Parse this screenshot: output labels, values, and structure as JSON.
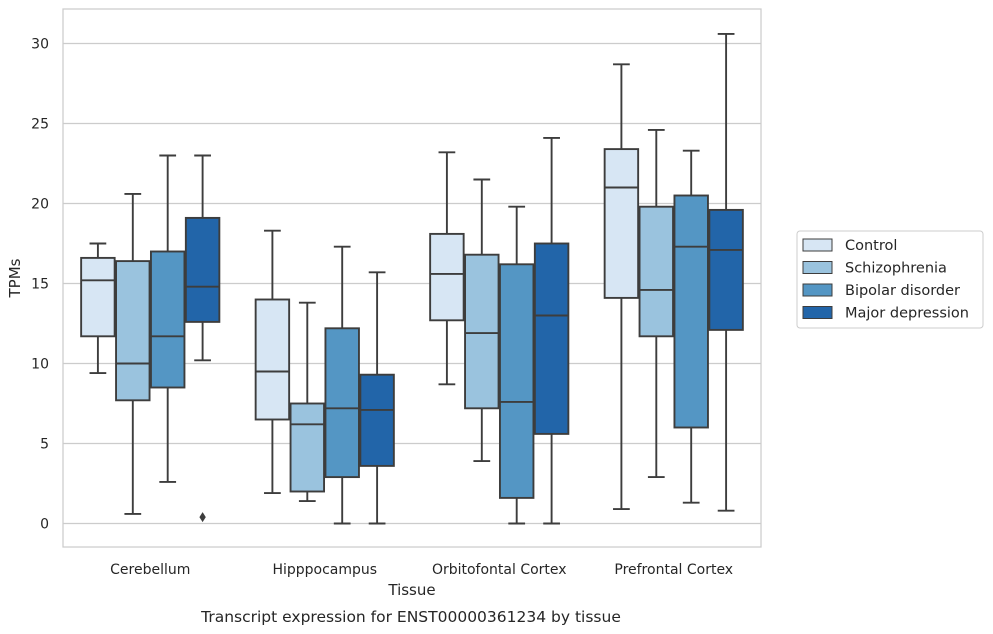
{
  "chart_data": {
    "type": "box",
    "caption": "Transcript expression for ENST00000361234 by tissue",
    "xlabel": "Tissue",
    "ylabel": "TPMs",
    "ylim": [
      -1.5,
      32.2
    ],
    "yticks": [
      0,
      5,
      10,
      15,
      20,
      25,
      30
    ],
    "grid": "horizontal",
    "legend_position": "right",
    "categories": [
      "Cerebellum",
      "Hipppocampus",
      "Orbitofontal Cortex",
      "Prefrontal Cortex"
    ],
    "series": [
      {
        "name": "Control",
        "color": "#d7e6f4",
        "boxes": [
          {
            "whislo": 9.4,
            "q1": 11.7,
            "med": 15.2,
            "q3": 16.6,
            "whishi": 17.5,
            "fliers": []
          },
          {
            "whislo": 1.9,
            "q1": 6.5,
            "med": 9.5,
            "q3": 14.0,
            "whishi": 18.3,
            "fliers": []
          },
          {
            "whislo": 8.7,
            "q1": 12.7,
            "med": 15.6,
            "q3": 18.1,
            "whishi": 23.2,
            "fliers": []
          },
          {
            "whislo": 0.9,
            "q1": 14.1,
            "med": 21.0,
            "q3": 23.4,
            "whishi": 28.7,
            "fliers": []
          }
        ]
      },
      {
        "name": "Schizophrenia",
        "color": "#9ac3de",
        "boxes": [
          {
            "whislo": 0.6,
            "q1": 7.7,
            "med": 10.0,
            "q3": 16.4,
            "whishi": 20.6,
            "fliers": []
          },
          {
            "whislo": 1.4,
            "q1": 2.0,
            "med": 6.2,
            "q3": 7.5,
            "whishi": 13.8,
            "fliers": []
          },
          {
            "whislo": 3.9,
            "q1": 7.2,
            "med": 11.9,
            "q3": 16.8,
            "whishi": 21.5,
            "fliers": []
          },
          {
            "whislo": 2.9,
            "q1": 11.7,
            "med": 14.6,
            "q3": 19.8,
            "whishi": 24.6,
            "fliers": []
          }
        ]
      },
      {
        "name": "Bipolar disorder",
        "color": "#5496c4",
        "boxes": [
          {
            "whislo": 2.6,
            "q1": 8.5,
            "med": 11.7,
            "q3": 17.0,
            "whishi": 23.0,
            "fliers": []
          },
          {
            "whislo": 0.0,
            "q1": 2.9,
            "med": 7.2,
            "q3": 12.2,
            "whishi": 17.3,
            "fliers": []
          },
          {
            "whislo": 0.0,
            "q1": 1.6,
            "med": 7.6,
            "q3": 16.2,
            "whishi": 19.8,
            "fliers": []
          },
          {
            "whislo": 1.3,
            "q1": 6.0,
            "med": 17.3,
            "q3": 20.5,
            "whishi": 23.3,
            "fliers": []
          }
        ]
      },
      {
        "name": "Major depression",
        "color": "#2265a9",
        "boxes": [
          {
            "whislo": 10.2,
            "q1": 12.6,
            "med": 14.8,
            "q3": 19.1,
            "whishi": 23.0,
            "fliers": [
              0.4
            ]
          },
          {
            "whislo": 0.0,
            "q1": 3.6,
            "med": 7.1,
            "q3": 9.3,
            "whishi": 15.7,
            "fliers": []
          },
          {
            "whislo": 0.0,
            "q1": 5.6,
            "med": 13.0,
            "q3": 17.5,
            "whishi": 24.1,
            "fliers": []
          },
          {
            "whislo": 0.8,
            "q1": 12.1,
            "med": 17.1,
            "q3": 19.6,
            "whishi": 30.6,
            "fliers": []
          }
        ]
      }
    ]
  }
}
